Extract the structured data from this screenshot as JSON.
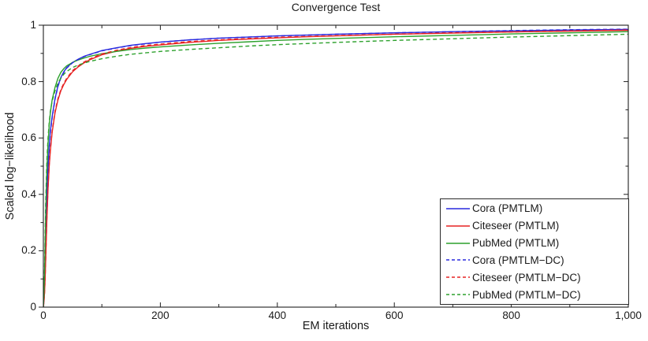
{
  "figure": {
    "background": "#ffffff",
    "axis_color": "#1f1f1f",
    "text_color": "#1a1a1a"
  },
  "chart_data": {
    "type": "line",
    "title": "Convergence Test",
    "xlabel": "EM iterations",
    "ylabel": "Scaled log−likelihood",
    "xlim": [
      0,
      1000
    ],
    "ylim": [
      0,
      1
    ],
    "grid": false,
    "legend_position": "lower right",
    "x_ticks": {
      "values": [
        0,
        200,
        400,
        600,
        800,
        1000
      ],
      "labels": [
        "0",
        "200",
        "400",
        "600",
        "800",
        "1,000"
      ],
      "minor_step": 100
    },
    "y_ticks": {
      "values": [
        0,
        0.2,
        0.4,
        0.6,
        0.8,
        1
      ],
      "labels": [
        "0",
        "0.2",
        "0.4",
        "0.6",
        "0.8",
        "1"
      ],
      "minor_step": 0.1
    },
    "x": [
      0,
      1,
      2,
      3,
      4,
      6,
      8,
      10,
      12,
      15,
      20,
      25,
      30,
      35,
      40,
      50,
      60,
      70,
      80,
      100,
      125,
      150,
      175,
      200,
      250,
      300,
      350,
      400,
      450,
      500,
      600,
      700,
      800,
      900,
      1000
    ],
    "series": [
      {
        "name": "Cora (PMTLM)",
        "color": "#2929dd",
        "style": "solid",
        "values": [
          0,
          0.03,
          0.08,
          0.15,
          0.24,
          0.4,
          0.5,
          0.57,
          0.625,
          0.675,
          0.74,
          0.785,
          0.815,
          0.835,
          0.85,
          0.868,
          0.88,
          0.89,
          0.897,
          0.91,
          0.92,
          0.929,
          0.935,
          0.94,
          0.948,
          0.954,
          0.958,
          0.962,
          0.965,
          0.968,
          0.973,
          0.977,
          0.98,
          0.983,
          0.985
        ]
      },
      {
        "name": "Citeseer (PMTLM)",
        "color": "#e62222",
        "style": "solid",
        "values": [
          0,
          0.02,
          0.05,
          0.1,
          0.17,
          0.31,
          0.42,
          0.5,
          0.555,
          0.62,
          0.69,
          0.735,
          0.768,
          0.79,
          0.808,
          0.835,
          0.853,
          0.867,
          0.878,
          0.895,
          0.908,
          0.918,
          0.925,
          0.93,
          0.939,
          0.946,
          0.951,
          0.955,
          0.959,
          0.962,
          0.968,
          0.972,
          0.976,
          0.979,
          0.982
        ]
      },
      {
        "name": "PubMed (PMTLM)",
        "color": "#2da12d",
        "style": "solid",
        "values": [
          0,
          0.04,
          0.11,
          0.22,
          0.33,
          0.49,
          0.58,
          0.645,
          0.69,
          0.735,
          0.78,
          0.812,
          0.833,
          0.846,
          0.856,
          0.868,
          0.877,
          0.884,
          0.89,
          0.899,
          0.907,
          0.914,
          0.919,
          0.923,
          0.93,
          0.936,
          0.941,
          0.946,
          0.95,
          0.953,
          0.959,
          0.964,
          0.969,
          0.973,
          0.977
        ]
      },
      {
        "name": "Cora (PMTLM−DC)",
        "color": "#2929dd",
        "style": "dashed",
        "values": [
          0,
          0.028,
          0.075,
          0.145,
          0.235,
          0.395,
          0.495,
          0.565,
          0.62,
          0.672,
          0.738,
          0.783,
          0.813,
          0.833,
          0.848,
          0.867,
          0.879,
          0.889,
          0.896,
          0.909,
          0.919,
          0.928,
          0.934,
          0.94,
          0.948,
          0.954,
          0.958,
          0.962,
          0.965,
          0.968,
          0.973,
          0.977,
          0.981,
          0.984,
          0.986
        ]
      },
      {
        "name": "Citeseer (PMTLM−DC)",
        "color": "#e62222",
        "style": "dashed",
        "values": [
          0,
          0.02,
          0.05,
          0.1,
          0.17,
          0.315,
          0.425,
          0.505,
          0.56,
          0.625,
          0.695,
          0.74,
          0.772,
          0.794,
          0.812,
          0.839,
          0.856,
          0.87,
          0.881,
          0.898,
          0.911,
          0.921,
          0.928,
          0.933,
          0.942,
          0.948,
          0.953,
          0.957,
          0.96,
          0.963,
          0.968,
          0.973,
          0.976,
          0.98,
          0.983
        ]
      },
      {
        "name": "PubMed (PMTLM−DC)",
        "color": "#2da12d",
        "style": "dashed",
        "values": [
          0,
          0.05,
          0.13,
          0.25,
          0.37,
          0.52,
          0.6,
          0.655,
          0.695,
          0.73,
          0.768,
          0.795,
          0.813,
          0.826,
          0.836,
          0.85,
          0.859,
          0.866,
          0.872,
          0.881,
          0.89,
          0.897,
          0.902,
          0.907,
          0.914,
          0.92,
          0.926,
          0.931,
          0.935,
          0.939,
          0.946,
          0.952,
          0.958,
          0.963,
          0.968
        ]
      }
    ]
  }
}
